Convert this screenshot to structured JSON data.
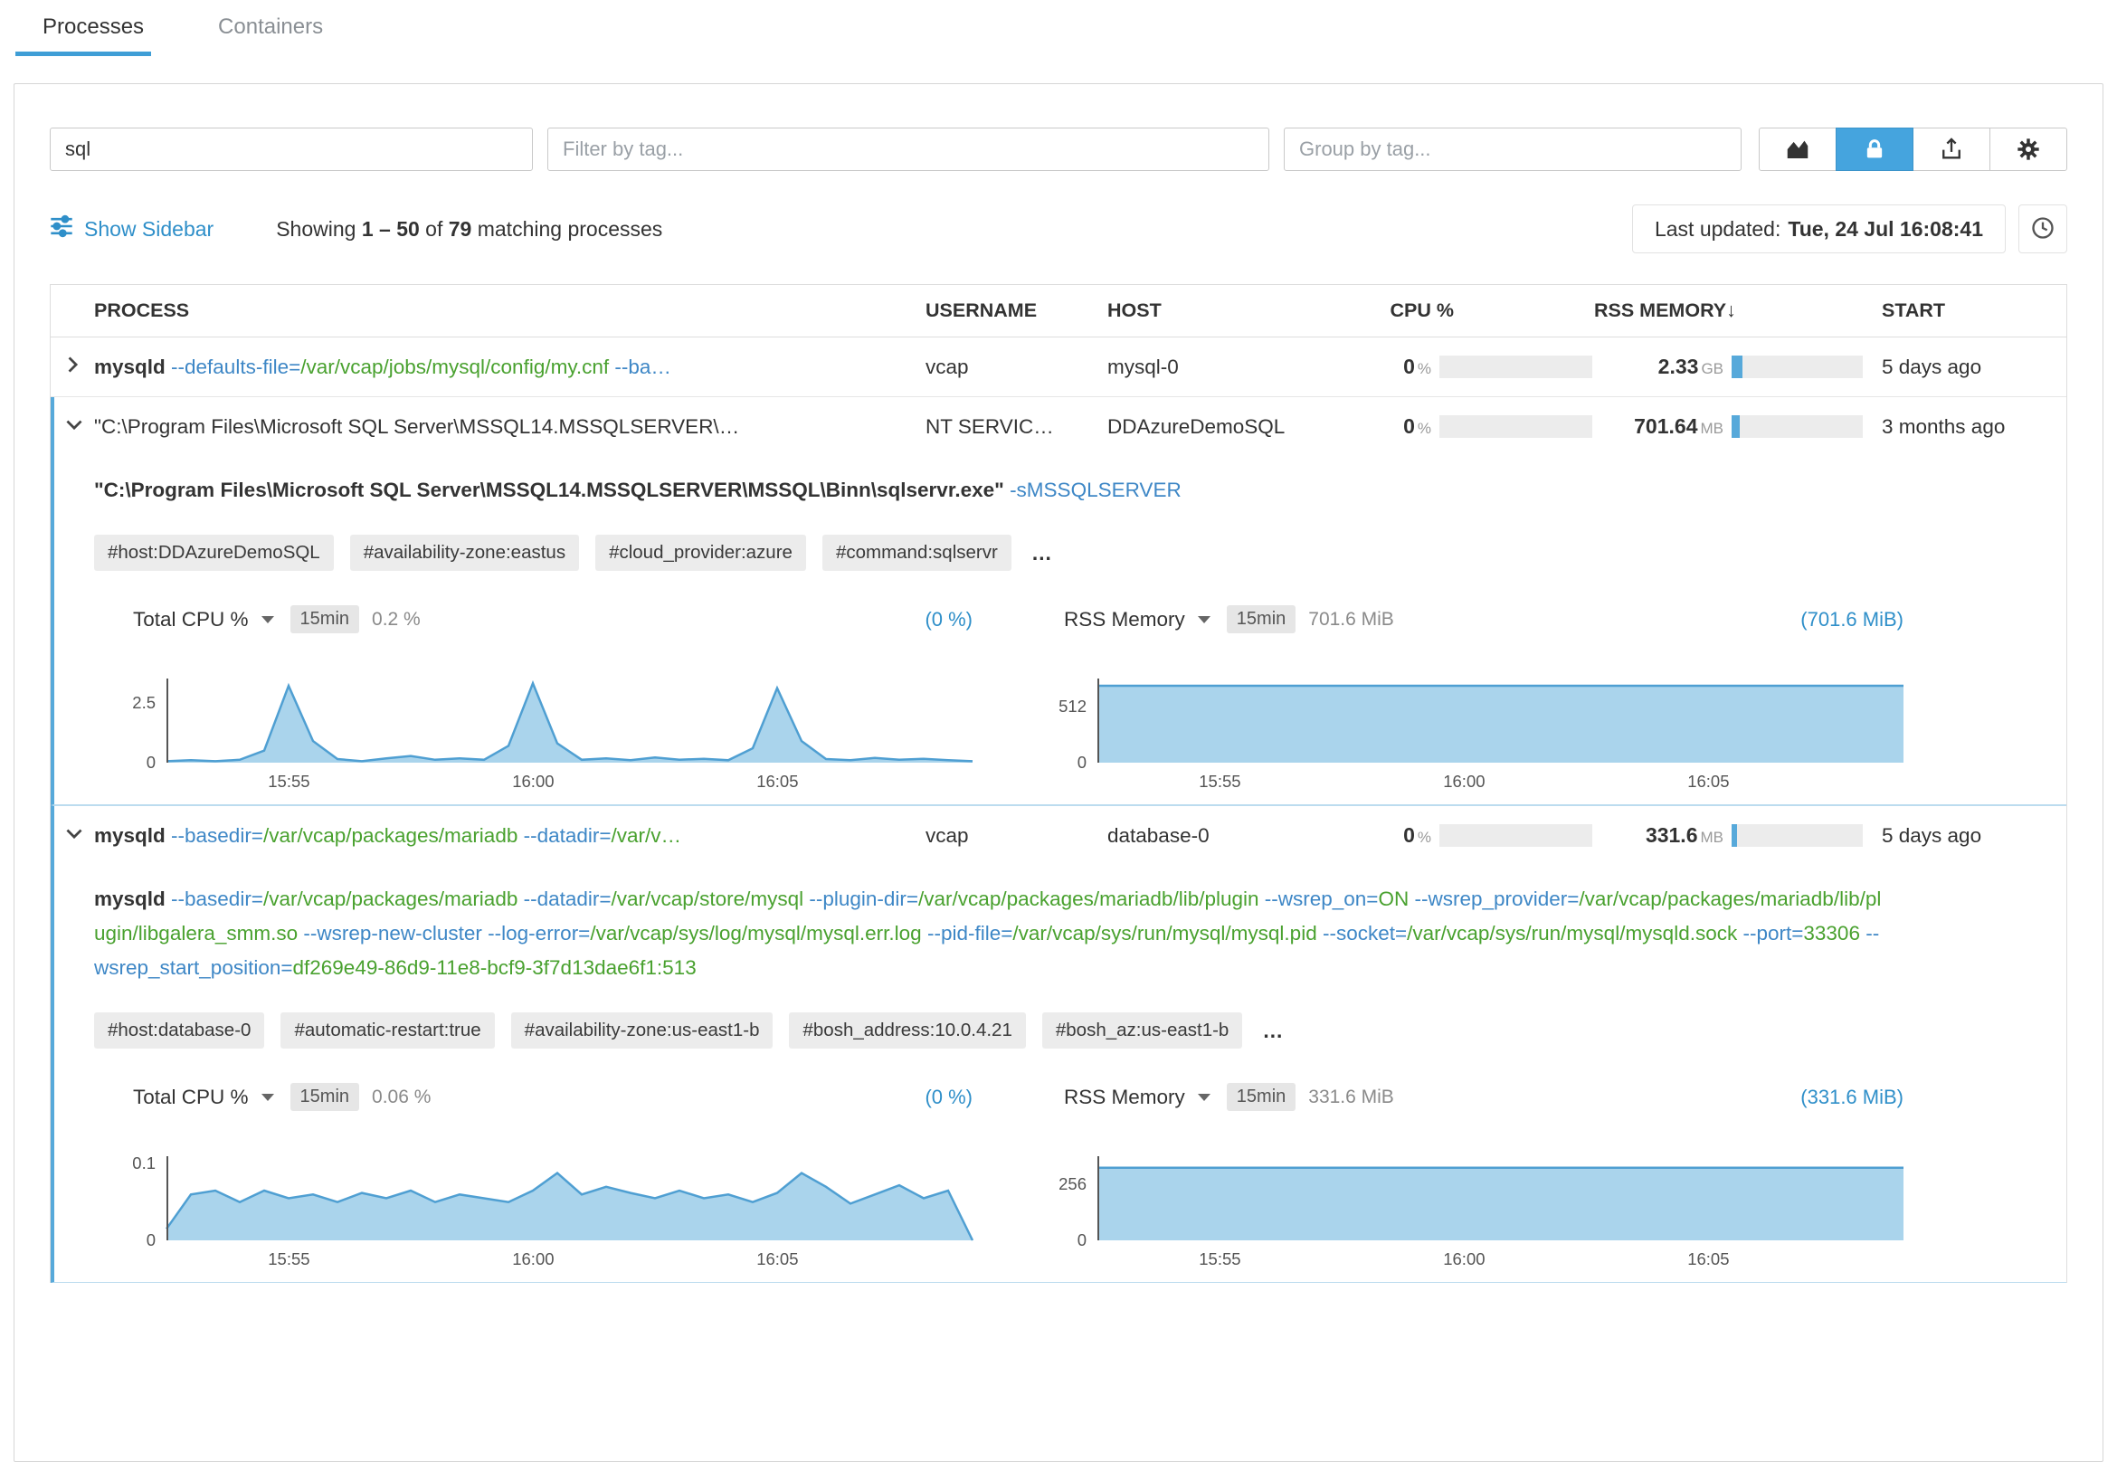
{
  "tabs": {
    "processes": "Processes",
    "containers": "Containers"
  },
  "toolbar": {
    "search_value": "sql",
    "filter_placeholder": "Filter by tag...",
    "group_placeholder": "Group by tag...",
    "accent_color": "#45a4de"
  },
  "status": {
    "show_sidebar": "Show Sidebar",
    "showing_label": "Showing",
    "showing_range": "1 – 50",
    "of_label": "of",
    "total": "79",
    "matching_label": "matching processes",
    "last_updated_label": "Last updated:",
    "last_updated_value": "Tue, 24 Jul 16:08:41"
  },
  "table_header": {
    "process": "PROCESS",
    "username": "USERNAME",
    "host": "HOST",
    "cpu": "CPU %",
    "rss": "RSS MEMORY",
    "sort_arrow": "↓",
    "start": "START"
  },
  "rows": [
    {
      "expanded": false,
      "summary_command": [
        {
          "t": "n",
          "x": "mysqld "
        },
        {
          "t": "f",
          "x": "--defaults-file="
        },
        {
          "t": "v",
          "x": "/var/vcap/jobs/mysql/config/my.cnf "
        },
        {
          "t": "f",
          "x": "--ba…"
        }
      ],
      "username": "vcap",
      "host": "mysql-0",
      "cpu_value": "0",
      "cpu_unit": "%",
      "cpu_fill_pct": 0,
      "rss_value": "2.33",
      "rss_unit": "GB",
      "rss_fill_pct": 8,
      "start": "5 days ago"
    },
    {
      "expanded": true,
      "summary_command": [
        {
          "t": "p",
          "x": "\"C:\\Program Files\\Microsoft SQL Server\\MSSQL14.MSSQLSERVER\\…"
        }
      ],
      "username": "NT SERVIC…",
      "host": "DDAzureDemoSQL",
      "cpu_value": "0",
      "cpu_unit": "%",
      "cpu_fill_pct": 0,
      "rss_value": "701.64",
      "rss_unit": "MB",
      "rss_fill_pct": 6,
      "start": "3 months ago",
      "full_command": [
        {
          "t": "n",
          "x": "\"C:\\Program Files\\Microsoft SQL Server\\MSSQL14.MSSQLSERVER\\MSSQL\\Binn\\sqlservr.exe\" "
        },
        {
          "t": "f",
          "x": "-sMSSQLSERVER"
        }
      ],
      "tags": [
        "#host:DDAzureDemoSQL",
        "#availability-zone:eastus",
        "#cloud_provider:azure",
        "#command:sqlservr"
      ],
      "tags_more": "…"
    },
    {
      "expanded": true,
      "summary_command": [
        {
          "t": "n",
          "x": "mysqld "
        },
        {
          "t": "f",
          "x": "--basedir="
        },
        {
          "t": "v",
          "x": "/var/vcap/packages/mariadb "
        },
        {
          "t": "f",
          "x": "--datadir="
        },
        {
          "t": "v",
          "x": "/var/v…"
        }
      ],
      "username": "vcap",
      "host": "database-0",
      "cpu_value": "0",
      "cpu_unit": "%",
      "cpu_fill_pct": 0,
      "rss_value": "331.6",
      "rss_unit": "MB",
      "rss_fill_pct": 4,
      "start": "5 days ago",
      "full_command": [
        {
          "t": "n",
          "x": "mysqld "
        },
        {
          "t": "f",
          "x": "--basedir="
        },
        {
          "t": "v",
          "x": "/var/vcap/packages/mariadb "
        },
        {
          "t": "f",
          "x": "--datadir="
        },
        {
          "t": "v",
          "x": "/var/vcap/store/mysql "
        },
        {
          "t": "f",
          "x": "--plugin-dir="
        },
        {
          "t": "v",
          "x": "/var/vcap/packages/mariadb/lib/plugin "
        },
        {
          "t": "f",
          "x": "--wsrep_on="
        },
        {
          "t": "v",
          "x": "ON "
        },
        {
          "t": "f",
          "x": "--wsrep_provider="
        },
        {
          "t": "v",
          "x": "/var/vcap/packages/mariadb/lib/plugin/libgalera_smm.so "
        },
        {
          "t": "f",
          "x": "--wsrep-new-cluster "
        },
        {
          "t": "f",
          "x": "--log-error="
        },
        {
          "t": "v",
          "x": "/var/vcap/sys/log/mysql/mysql.err.log "
        },
        {
          "t": "f",
          "x": "--pid-file="
        },
        {
          "t": "v",
          "x": "/var/vcap/sys/run/mysql/mysql.pid "
        },
        {
          "t": "f",
          "x": "--socket="
        },
        {
          "t": "v",
          "x": "/var/vcap/sys/run/mysql/mysqld.sock "
        },
        {
          "t": "f",
          "x": "--port="
        },
        {
          "t": "v",
          "x": "33306 "
        },
        {
          "t": "f",
          "x": "--wsrep_start_position="
        },
        {
          "t": "v",
          "x": "df269e49-86d9-11e8-bcf9-3f7d13dae6f1:513"
        }
      ],
      "tags": [
        "#host:database-0",
        "#automatic-restart:true",
        "#availability-zone:us-east1-b",
        "#bosh_address:10.0.4.21",
        "#bosh_az:us-east1-b"
      ],
      "tags_more": "…"
    }
  ],
  "chart_data": [
    {
      "id": "row2-cpu",
      "type": "area",
      "title": "Total CPU %",
      "range": "15min",
      "value": "0.2 %",
      "link": "(0 %)",
      "ymax": 3.5,
      "yticks": [
        {
          "label": "2.5",
          "v": 2.5
        },
        {
          "label": "0",
          "v": 0
        }
      ],
      "xticks": [
        {
          "label": "15:55",
          "p": 0.152
        },
        {
          "label": "16:00",
          "p": 0.455
        },
        {
          "label": "16:05",
          "p": 0.758
        }
      ],
      "values": [
        0.06,
        0.1,
        0.06,
        0.12,
        0.5,
        3.2,
        0.9,
        0.15,
        0.06,
        0.18,
        0.28,
        0.12,
        0.18,
        0.12,
        0.7,
        3.3,
        0.8,
        0.12,
        0.18,
        0.1,
        0.22,
        0.12,
        0.16,
        0.1,
        0.6,
        3.1,
        0.9,
        0.15,
        0.1,
        0.2,
        0.12,
        0.16,
        0.1,
        0.06
      ]
    },
    {
      "id": "row2-mem",
      "type": "area",
      "title": "RSS Memory",
      "range": "15min",
      "value": "701.6 MiB",
      "link": "(701.6 MiB)",
      "ymax": 768,
      "yticks": [
        {
          "label": "512",
          "v": 512
        },
        {
          "label": "0",
          "v": 0
        }
      ],
      "xticks": [
        {
          "label": "15:55",
          "p": 0.152
        },
        {
          "label": "16:00",
          "p": 0.455
        },
        {
          "label": "16:05",
          "p": 0.758
        }
      ],
      "values": [
        701.6,
        701.6
      ]
    },
    {
      "id": "row3-cpu",
      "type": "area",
      "title": "Total CPU %",
      "range": "15min",
      "value": "0.06 %",
      "link": "(0 %)",
      "ymax": 0.11,
      "yticks": [
        {
          "label": "0.1",
          "v": 0.1
        },
        {
          "label": "0",
          "v": 0
        }
      ],
      "xticks": [
        {
          "label": "15:55",
          "p": 0.152
        },
        {
          "label": "16:00",
          "p": 0.455
        },
        {
          "label": "16:05",
          "p": 0.758
        }
      ],
      "values": [
        0.015,
        0.06,
        0.065,
        0.05,
        0.065,
        0.055,
        0.06,
        0.05,
        0.062,
        0.055,
        0.065,
        0.05,
        0.06,
        0.055,
        0.05,
        0.065,
        0.088,
        0.06,
        0.07,
        0.062,
        0.055,
        0.065,
        0.055,
        0.06,
        0.05,
        0.062,
        0.088,
        0.07,
        0.048,
        0.06,
        0.072,
        0.055,
        0.065,
        0.0
      ]
    },
    {
      "id": "row3-mem",
      "type": "area",
      "title": "RSS Memory",
      "range": "15min",
      "value": "331.6 MiB",
      "link": "(331.6 MiB)",
      "ymax": 384,
      "yticks": [
        {
          "label": "256",
          "v": 256
        },
        {
          "label": "0",
          "v": 0
        }
      ],
      "xticks": [
        {
          "label": "15:55",
          "p": 0.152
        },
        {
          "label": "16:00",
          "p": 0.455
        },
        {
          "label": "16:05",
          "p": 0.758
        }
      ],
      "values": [
        331.6,
        331.6
      ]
    }
  ]
}
